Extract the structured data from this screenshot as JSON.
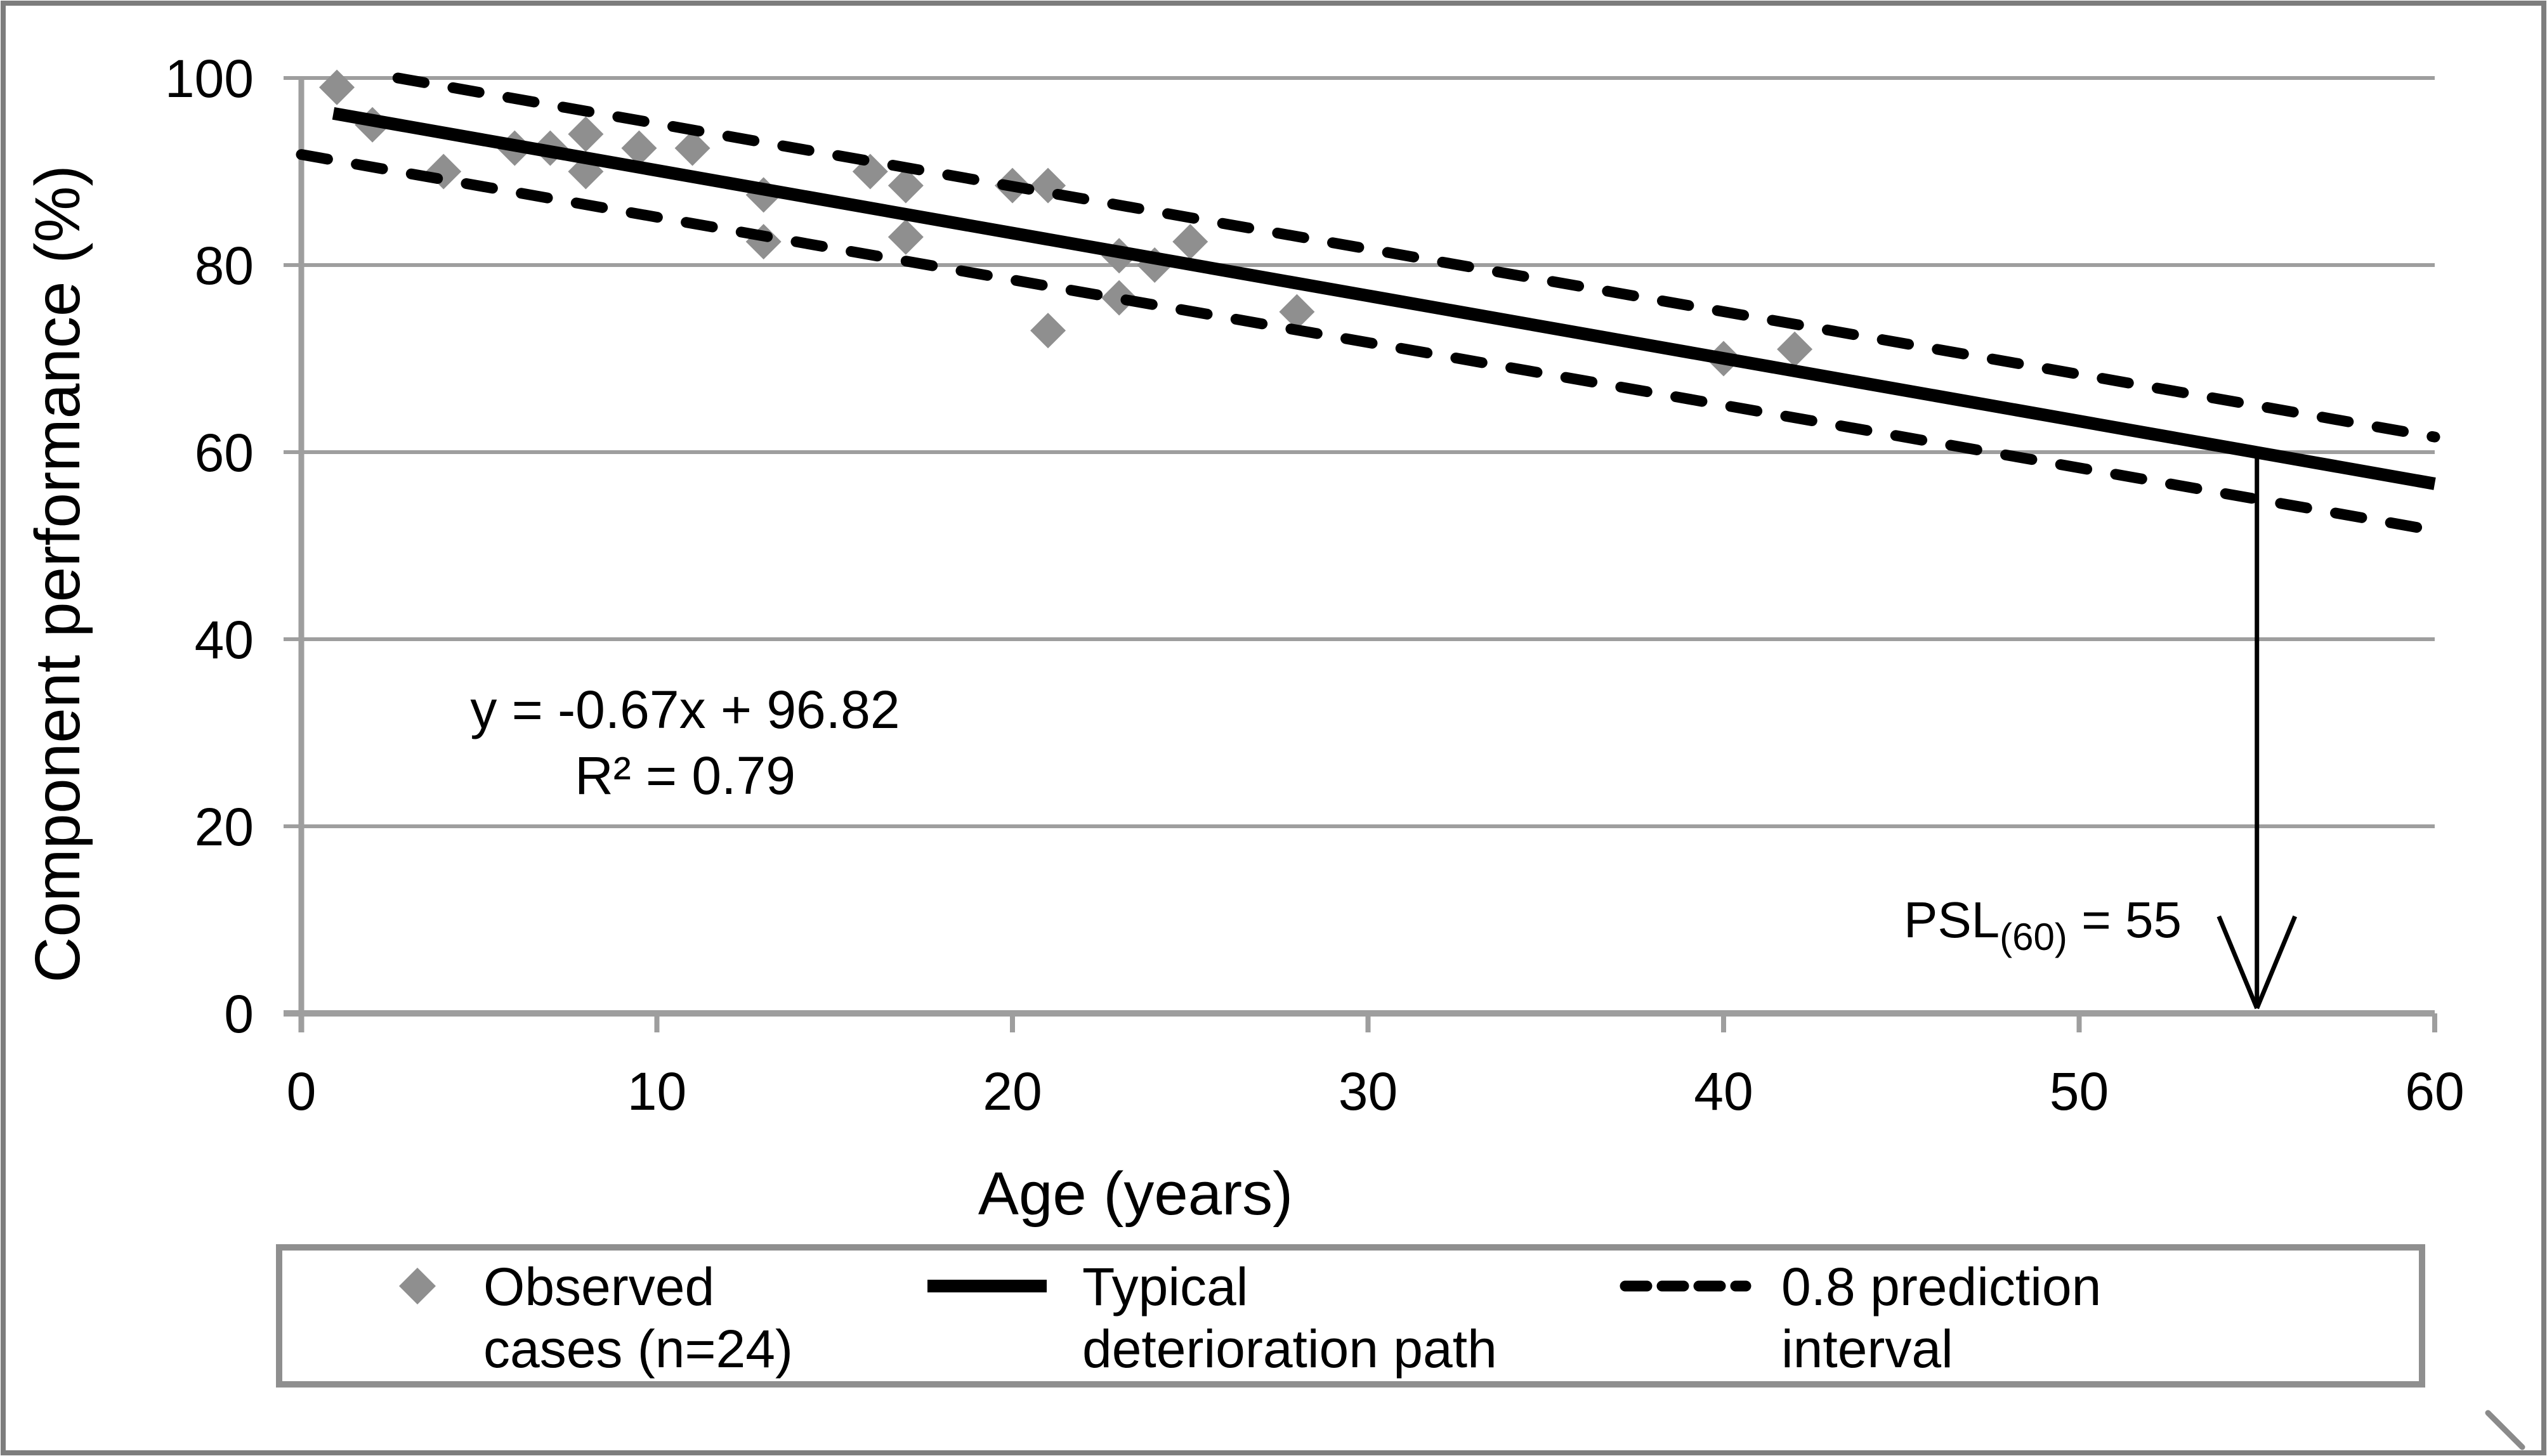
{
  "figure": {
    "kind": "excel-style scatter chart with trendline and prediction interval",
    "background": "#ffffff",
    "border_color": "#7d7d7d",
    "grid_color": "#9e9e9e",
    "axis_color": "#9e9e9e",
    "trend_color": "#000000",
    "marker_color": "#8f8f8f",
    "text_color": "#000000"
  },
  "chart_data": {
    "type": "scatter",
    "title": "",
    "xlabel": "Age (years)",
    "ylabel": "Component performance (%)",
    "xlim": [
      0,
      60
    ],
    "ylim": [
      0,
      100
    ],
    "xticks": [
      0,
      10,
      20,
      30,
      40,
      50,
      60
    ],
    "yticks": [
      100,
      80,
      60,
      40,
      20,
      0
    ],
    "grid": "horizontal-only",
    "legend_position": "bottom",
    "series": [
      {
        "name": "Observed cases (n=24)",
        "type": "scatter",
        "marker": "diamond",
        "marker_color": "#8f8f8f",
        "n": 24,
        "points": [
          [
            1,
            99
          ],
          [
            2,
            95
          ],
          [
            4,
            90
          ],
          [
            6,
            92.5
          ],
          [
            7,
            92.5
          ],
          [
            8,
            94
          ],
          [
            8,
            90
          ],
          [
            9.5,
            92.5
          ],
          [
            11,
            92.5
          ],
          [
            13,
            87.5
          ],
          [
            13,
            82.5
          ],
          [
            16,
            90
          ],
          [
            17,
            88.5
          ],
          [
            17,
            83
          ],
          [
            20,
            88.5
          ],
          [
            21,
            88.5
          ],
          [
            21,
            73
          ],
          [
            23,
            81
          ],
          [
            23,
            76.5
          ],
          [
            24,
            80
          ],
          [
            25,
            82.5
          ],
          [
            28,
            75
          ],
          [
            40,
            70
          ],
          [
            42,
            71
          ]
        ]
      },
      {
        "name": "Typical deterioration path",
        "type": "line",
        "style": "solid",
        "color": "#000000",
        "slope": -0.67,
        "intercept": 96.82,
        "x_start": 0.9,
        "x_end": 60
      },
      {
        "name": "0.8 prediction interval",
        "type": "interval",
        "style": "dashed",
        "color": "#000000",
        "slope": -0.67,
        "intercept": 96.82,
        "offset": 5,
        "x_start": 0,
        "x_end": 60
      }
    ],
    "annotations": {
      "equation": "y = -0.67x + 96.82",
      "r_squared": "R² = 0.79",
      "psl": {
        "prefix": "PSL",
        "sub": "(60)",
        "rest": " = 55",
        "arrow_x": 55,
        "arrow_from_y": 60,
        "arrow_to_y": 0
      }
    }
  },
  "legend": {
    "items": [
      {
        "marker": "diamond",
        "line1": "Observed",
        "line2": "cases (n=24)"
      },
      {
        "marker": "solid-line",
        "line1": "Typical",
        "line2": "deterioration path"
      },
      {
        "marker": "dashed-line",
        "line1": "0.8 prediction",
        "line2": "interval"
      }
    ]
  }
}
